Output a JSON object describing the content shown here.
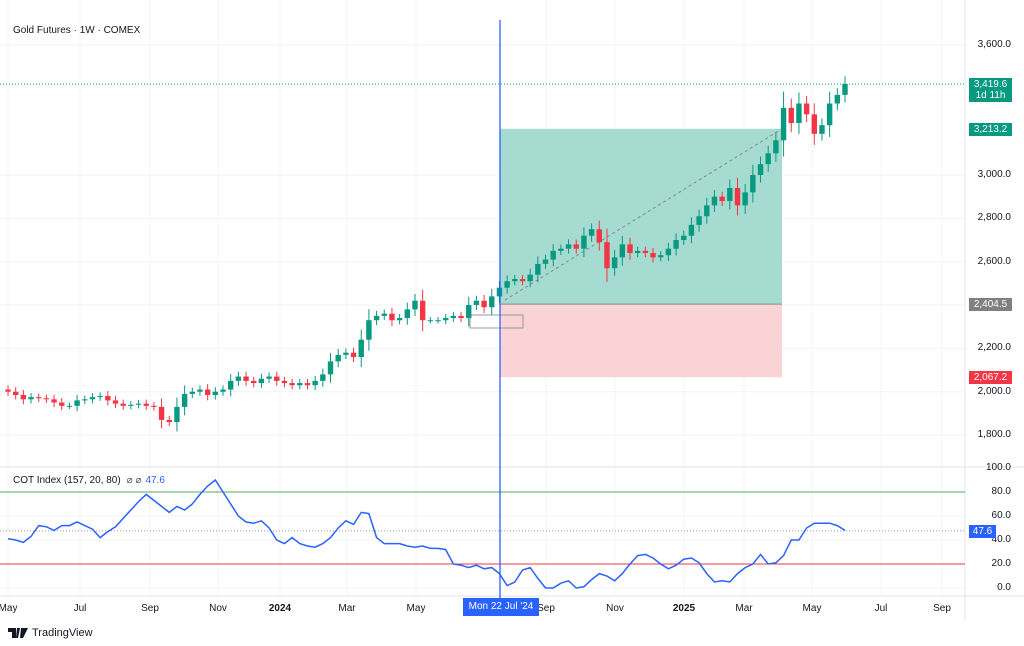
{
  "header": {
    "title": "Gold Futures · 1W · COMEX"
  },
  "indicator": {
    "title": "COT Index (157, 20, 80)",
    "symbols": "⌀  ⌀",
    "value": "47.6"
  },
  "price_axis": {
    "labels": [
      "3,600.0",
      "3,000.0",
      "2,800.0",
      "2,600.0",
      "2,200.0",
      "2,000.0",
      "1,800.0"
    ],
    "values": [
      3600,
      3000,
      2800,
      2600,
      2200,
      2000,
      1800
    ]
  },
  "indicator_axis": {
    "labels": [
      "100.0",
      "80.0",
      "60.0",
      "40.0",
      "20.0",
      "0.0"
    ],
    "values": [
      100,
      80,
      60,
      40,
      20,
      0
    ]
  },
  "tags": {
    "last_price": "3,419.6",
    "countdown": "1d 11h",
    "target": "3,213.2",
    "entry": "2,404.5",
    "stop": "2,067.2",
    "cot": "47.6"
  },
  "time_axis": {
    "labels": [
      {
        "t": "May",
        "b": false
      },
      {
        "t": "Jul",
        "b": false
      },
      {
        "t": "Sep",
        "b": false
      },
      {
        "t": "Nov",
        "b": false
      },
      {
        "t": "2024",
        "b": true
      },
      {
        "t": "Mar",
        "b": false
      },
      {
        "t": "May",
        "b": false
      },
      {
        "t": "Sep",
        "b": false
      },
      {
        "t": "Nov",
        "b": false
      },
      {
        "t": "2025",
        "b": true
      },
      {
        "t": "Mar",
        "b": false
      },
      {
        "t": "May",
        "b": false
      },
      {
        "t": "Jul",
        "b": false
      },
      {
        "t": "Sep",
        "b": false
      }
    ],
    "crosshair_date": "Mon 22 Jul '24"
  },
  "colors": {
    "up": "#089981",
    "down": "#f23645",
    "line": "#2962ff",
    "upper": "#4caf50",
    "lower": "#f23645",
    "profit": "#a5dbd0",
    "loss": "#fad3d6"
  },
  "position": {
    "entry": 2404.5,
    "target": 3213.2,
    "stop": 2067.2
  },
  "levels": {
    "upper": 80,
    "lower": 20
  },
  "branding": {
    "name": "TradingView"
  },
  "chart_data": {
    "type": "candlestick",
    "open_first": 2010,
    "closes": [
      2000,
      1985,
      1965,
      1975,
      1970,
      1965,
      1950,
      1935,
      1935,
      1960,
      1965,
      1975,
      1980,
      1960,
      1945,
      1935,
      1940,
      1945,
      1935,
      1930,
      1870,
      1860,
      1930,
      1990,
      2000,
      2010,
      1985,
      2000,
      2010,
      2050,
      2070,
      2050,
      2040,
      2060,
      2070,
      2050,
      2040,
      2030,
      2040,
      2030,
      2050,
      2080,
      2140,
      2170,
      2180,
      2160,
      2240,
      2330,
      2350,
      2360,
      2330,
      2340,
      2380,
      2420,
      2330,
      2330,
      2330,
      2340,
      2350,
      2340,
      2400,
      2420,
      2390,
      2440,
      2480,
      2510,
      2520,
      2510,
      2540,
      2590,
      2610,
      2650,
      2660,
      2680,
      2660,
      2720,
      2750,
      2690,
      2570,
      2620,
      2680,
      2640,
      2650,
      2640,
      2620,
      2630,
      2660,
      2700,
      2720,
      2770,
      2810,
      2860,
      2900,
      2880,
      2940,
      2860,
      2920,
      3000,
      3050,
      3100,
      3160,
      3310,
      3240,
      3330,
      3280,
      3190,
      3230,
      3330,
      3370,
      3420
    ],
    "cot": [
      41,
      40,
      38,
      43,
      52,
      51,
      48,
      52,
      52,
      55,
      52,
      49,
      42,
      47,
      51,
      58,
      65,
      72,
      78,
      73,
      68,
      63,
      68,
      65,
      70,
      78,
      85,
      90,
      80,
      70,
      60,
      55,
      54,
      56,
      50,
      40,
      37,
      42,
      37,
      35,
      34,
      37,
      42,
      50,
      56,
      53,
      63,
      62,
      42,
      37,
      37,
      37,
      35,
      34,
      35,
      33,
      33,
      32,
      20,
      19,
      17,
      19,
      16,
      17,
      12,
      2,
      5,
      15,
      17,
      8,
      0,
      0,
      4,
      6,
      0,
      1,
      7,
      12,
      10,
      6,
      12,
      20,
      27,
      28,
      25,
      20,
      16,
      19,
      24,
      25,
      21,
      12,
      5,
      6,
      5,
      12,
      17,
      20,
      28,
      20,
      21,
      27,
      40,
      40,
      50,
      54,
      54,
      54,
      52,
      48
    ],
    "price_range": [
      1700,
      3700
    ],
    "cot_range": [
      -10,
      100
    ]
  }
}
